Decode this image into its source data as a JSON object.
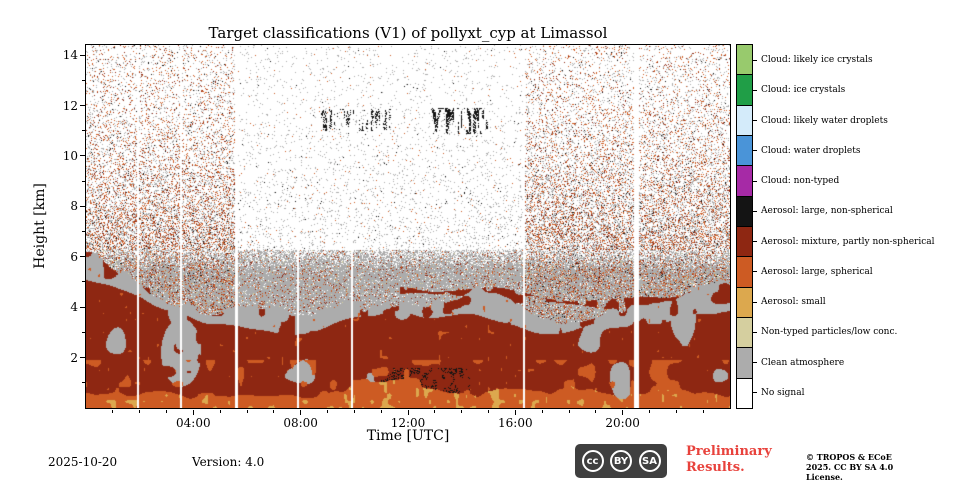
{
  "chart_data": {
    "type": "heatmap",
    "title": "Target classifications (V1) of pollyxt_cyp at Limassol",
    "xlabel": "Time [UTC]",
    "ylabel": "Height [km]",
    "xlim_hours": [
      0,
      24
    ],
    "ylim_km": [
      0,
      14.4
    ],
    "x_ticks": [
      {
        "hour": 4,
        "label": "04:00"
      },
      {
        "hour": 8,
        "label": "08:00"
      },
      {
        "hour": 12,
        "label": "12:00"
      },
      {
        "hour": 16,
        "label": "16:00"
      },
      {
        "hour": 20,
        "label": "20:00"
      }
    ],
    "y_ticks": [
      2,
      4,
      6,
      8,
      10,
      12,
      14
    ],
    "classes": [
      {
        "label": "Cloud: likely ice crystals",
        "color": "#98ca6d"
      },
      {
        "label": "Cloud: ice crystals",
        "color": "#209e47"
      },
      {
        "label": "Cloud: likely water droplets",
        "color": "#d4ebfa"
      },
      {
        "label": "Cloud: water droplets",
        "color": "#4a94d8"
      },
      {
        "label": "Cloud: non-typed",
        "color": "#a62aa6"
      },
      {
        "label": "Aerosol: large, non-spherical",
        "color": "#141414"
      },
      {
        "label": "Aerosol: mixture, partly non-spherical",
        "color": "#8e2712"
      },
      {
        "label": "Aerosol: large, spherical",
        "color": "#cd5b23"
      },
      {
        "label": "Aerosol: small",
        "color": "#dca84e"
      },
      {
        "label": "Non-typed particles/low conc.",
        "color": "#d5cf9f"
      },
      {
        "label": "Clean atmosphere",
        "color": "#acacac"
      },
      {
        "label": "No signal",
        "color": "#ffffff"
      }
    ],
    "scene_summary": [
      {
        "feature": "aerosol mixture, partly non-spherical layer",
        "height_km": [
          0.5,
          4.0
        ],
        "time_utc_h": [
          0,
          24
        ]
      },
      {
        "feature": "large spherical aerosol near surface",
        "height_km": [
          0,
          1.2
        ],
        "time_utc_h": [
          0,
          24
        ]
      },
      {
        "feature": "clean-atmosphere gray band above aerosol",
        "height_km": [
          3.5,
          6.2
        ],
        "time_utc_h": [
          0,
          24
        ]
      },
      {
        "feature": "large non-spherical aerosol patches aloft",
        "height_km": [
          10.9,
          11.9
        ],
        "time_utc_h": [
          8.8,
          15.0
        ]
      },
      {
        "feature": "dense retrieval speckle up to plot top (nighttime)",
        "height_km": [
          6,
          14.4
        ],
        "time_utc_h": [
          0,
          5.6
        ]
      },
      {
        "feature": "dense retrieval speckle up to plot top (evening)",
        "height_km": [
          6,
          14.4
        ],
        "time_utc_h": [
          16.4,
          24
        ]
      }
    ],
    "render": {
      "gaps": [
        {
          "t": 1.95,
          "w": 0.07
        },
        {
          "t": 3.55,
          "w": 0.07
        },
        {
          "t": 5.6,
          "w": 0.12
        },
        {
          "t": 7.9,
          "w": 0.07
        },
        {
          "t": 9.9,
          "w": 0.07
        },
        {
          "t": 16.33,
          "w": 0.09
        },
        {
          "t": 20.52,
          "w": 0.18
        }
      ],
      "day_window": {
        "start_hour": 5.66,
        "end_hour": 16.28,
        "density_factor": 0.14
      },
      "cirrus_clusters": [
        {
          "t0": 8.75,
          "t1": 11.4,
          "h0": 11.0,
          "h1": 11.85,
          "p": 0.45
        },
        {
          "t0": 12.85,
          "t1": 15.05,
          "h0": 10.85,
          "h1": 11.9,
          "p": 0.75
        }
      ],
      "dark_blob": {
        "t0": 11.0,
        "t1": 14.3,
        "h0": 0.3,
        "h1": 1.6,
        "p": 0.35
      }
    }
  },
  "footer": {
    "date": "2025-10-20",
    "version": "Version: 4.0",
    "cc_badge": [
      "cc",
      "BY",
      "SA"
    ],
    "preliminary": "Preliminary Results.",
    "preliminary_color": "#e8423c",
    "copyright": "© TROPOS & ECoE 2025. CC BY SA 4.0 License."
  }
}
